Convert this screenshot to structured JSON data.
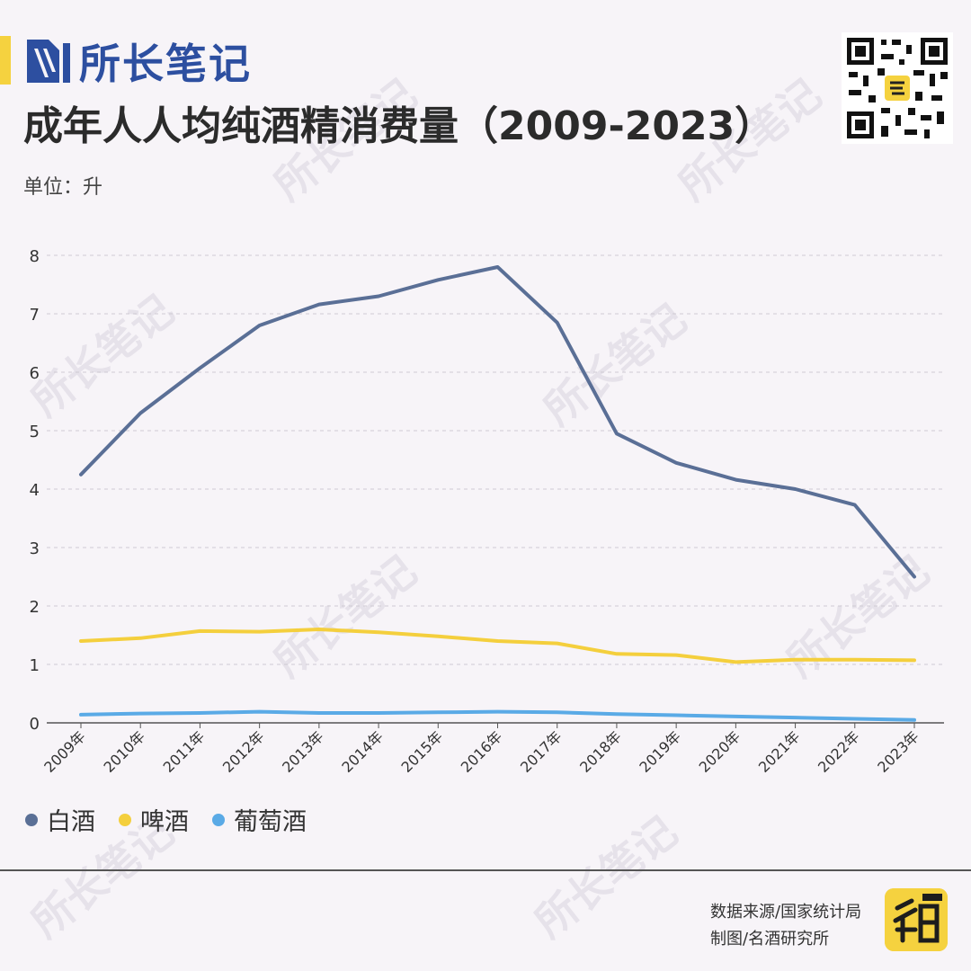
{
  "brand": {
    "name": "所长笔记"
  },
  "title": "成年人人均纯酒精消费量（2009-2023）",
  "unit_label": "单位：升",
  "chart_data": {
    "type": "line",
    "title": "成年人人均纯酒精消费量（2009-2023）",
    "ylabel": "单位：升",
    "ylim": [
      0,
      8
    ],
    "yticks": [
      "0",
      "1",
      "2",
      "3",
      "4",
      "5",
      "6",
      "7",
      "8"
    ],
    "categories": [
      "2009年",
      "2010年",
      "2011年",
      "2012年",
      "2013年",
      "2014年",
      "2015年",
      "2016年",
      "2017年",
      "2018年",
      "2019年",
      "2020年",
      "2021年",
      "2022年",
      "2023年"
    ],
    "grid": true,
    "legend": "bottom-left",
    "series": [
      {
        "name": "白酒",
        "color": "#5a6f96",
        "values": [
          4.25,
          5.3,
          6.07,
          6.8,
          7.16,
          7.3,
          7.58,
          7.8,
          6.85,
          4.95,
          4.45,
          4.16,
          4.0,
          3.73,
          2.5
        ]
      },
      {
        "name": "啤酒",
        "color": "#f4cf3d",
        "values": [
          1.4,
          1.45,
          1.57,
          1.56,
          1.6,
          1.55,
          1.48,
          1.4,
          1.36,
          1.18,
          1.16,
          1.04,
          1.08,
          1.08,
          1.07
        ]
      },
      {
        "name": "葡萄酒",
        "color": "#5aaae6",
        "values": [
          0.14,
          0.16,
          0.17,
          0.19,
          0.17,
          0.17,
          0.18,
          0.19,
          0.18,
          0.15,
          0.13,
          0.11,
          0.09,
          0.07,
          0.05
        ]
      }
    ]
  },
  "footer": {
    "source": "数据来源/国家统计局",
    "credit": "制图/名酒研究所"
  },
  "icons": {
    "brand_logo": "brand-logo-icon",
    "qr": "qr-code",
    "badge": "mingjiu-badge-icon"
  }
}
